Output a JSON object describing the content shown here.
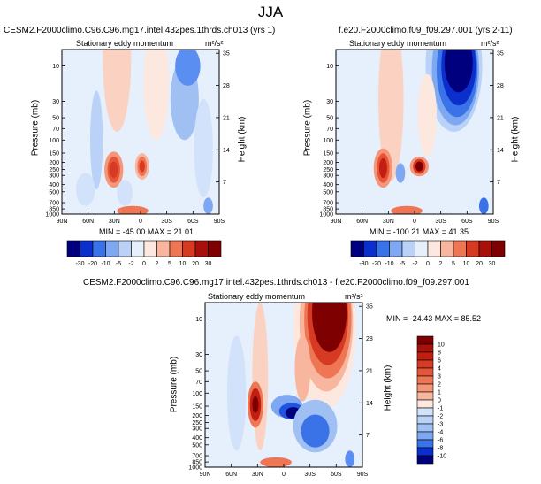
{
  "title": "JJA",
  "palette": [
    "#00007f",
    "#0a2fcc",
    "#1f54e0",
    "#3a73e8",
    "#5a8ef0",
    "#7ea8f2",
    "#a0c0f4",
    "#bad2f7",
    "#d2e2fa",
    "#e6effc",
    "#fde8e0",
    "#fbd2c2",
    "#f9b69e",
    "#f59678",
    "#ef7655",
    "#e5553a",
    "#d63a22",
    "#c21e12",
    "#a8100a",
    "#7f0000"
  ],
  "colorbar_top": {
    "labels": [
      "-30",
      "-20",
      "-10",
      "-5",
      "-2",
      "0",
      "2",
      "5",
      "10",
      "20",
      "30"
    ]
  },
  "colorbar_diff": {
    "labels": [
      "10",
      "8",
      "6",
      "4",
      "3",
      "2",
      "1",
      "0",
      "-1",
      "-2",
      "-3",
      "-4",
      "-6",
      "-8",
      "-10"
    ]
  },
  "chart_data": [
    {
      "type": "heatmap",
      "title": "CESM2.F2000climo.C96.C96.mg17.intel.432pes.1thrds.ch013 (yrs 1)",
      "subtitle": "Stationary eddy momentum",
      "units": "m²/s²",
      "ylabel": "Pressure (mb)",
      "y2label": "Height (km)",
      "x_ticks": [
        "90N",
        "60N",
        "30N",
        "0",
        "30S",
        "60S",
        "90S"
      ],
      "y_ticks": [
        "10",
        "30",
        "50",
        "70",
        "100",
        "150",
        "200",
        "250",
        "300",
        "400",
        "500",
        "700",
        "850",
        "1000"
      ],
      "y2_ticks": [
        "35",
        "28",
        "21",
        "14",
        "7"
      ],
      "stats": "MIN = -45.00  MAX = 21.01",
      "min": -45.0,
      "max": 21.01
    },
    {
      "type": "heatmap",
      "title": "f.e20.F2000climo.f09_f09.297.001 (yrs 2-11)",
      "subtitle": "Stationary eddy momentum",
      "units": "m²/s²",
      "ylabel": "Pressure (mb)",
      "y2label": "Height (km)",
      "x_ticks": [
        "90N",
        "60N",
        "30N",
        "0",
        "30S",
        "60S",
        "90S"
      ],
      "y_ticks": [
        "10",
        "30",
        "50",
        "70",
        "100",
        "150",
        "200",
        "250",
        "300",
        "400",
        "500",
        "700",
        "850",
        "1000"
      ],
      "y2_ticks": [
        "35",
        "28",
        "21",
        "14",
        "7"
      ],
      "stats": "MIN = -100.21  MAX = 41.35",
      "min": -100.21,
      "max": 41.35
    },
    {
      "type": "heatmap",
      "title": "CESM2.F2000climo.C96.C96.mg17.intel.432pes.1thrds.ch013 - f.e20.F2000climo.f09_f09.297.001",
      "subtitle": "Stationary eddy momentum",
      "units": "m²/s²",
      "ylabel": "Pressure (mb)",
      "y2label": "Height (km)",
      "x_ticks": [
        "90N",
        "60N",
        "30N",
        "0",
        "30S",
        "60S",
        "90S"
      ],
      "y_ticks": [
        "10",
        "30",
        "50",
        "70",
        "100",
        "150",
        "200",
        "250",
        "300",
        "400",
        "500",
        "700",
        "850",
        "1000"
      ],
      "y2_ticks": [
        "35",
        "28",
        "21",
        "14",
        "7"
      ],
      "stats": "MIN = -24.43  MAX = 85.52",
      "min": -24.43,
      "max": 85.52
    }
  ]
}
